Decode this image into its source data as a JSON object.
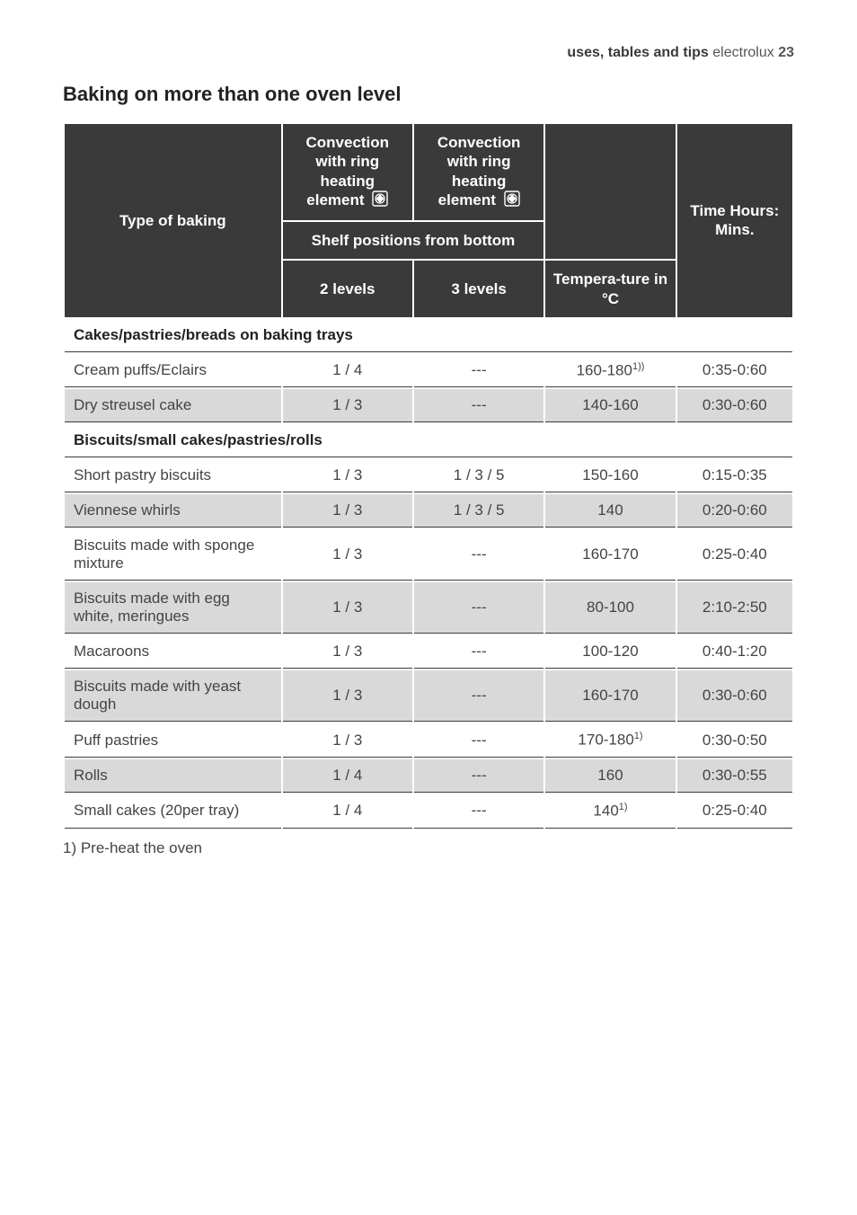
{
  "header": {
    "section": "uses, tables and tips",
    "brand": "electrolux",
    "page": "23"
  },
  "title": "Baking on more than one oven level",
  "table": {
    "colwidths": [
      "30%",
      "18%",
      "18%",
      "18%",
      "16%"
    ],
    "head": {
      "type_of_baking": "Type of baking",
      "conv1": "Convection with ring heating element",
      "conv2": "Convection with ring heating element",
      "time": "Time Hours: Mins.",
      "shelf_span": "Shelf positions from bottom",
      "temp": "Tempera-ture in °C",
      "two_levels": "2 levels",
      "three_levels": "3 levels"
    },
    "sections": [
      {
        "heading": "Cakes/pastries/breads on baking trays",
        "rows": [
          {
            "shade": "odd",
            "name": "Cream puffs/Eclairs",
            "two": "1 / 4",
            "three": "---",
            "temp_html": "160-180<sup>1))</sup>",
            "time": "0:35-0:60"
          },
          {
            "shade": "even",
            "name": "Dry streusel cake",
            "two": "1 / 3",
            "three": "---",
            "temp_html": "140-160",
            "time": "0:30-0:60"
          }
        ]
      },
      {
        "heading": "Biscuits/small cakes/pastries/rolls",
        "rows": [
          {
            "shade": "odd",
            "name": "Short pastry biscuits",
            "two": "1 / 3",
            "three": "1 / 3 / 5",
            "temp_html": "150-160",
            "time": "0:15-0:35"
          },
          {
            "shade": "even",
            "name": "Viennese whirls",
            "two": "1 / 3",
            "three": "1 / 3 / 5",
            "temp_html": "140",
            "time": "0:20-0:60"
          },
          {
            "shade": "odd",
            "name": "Biscuits made with sponge mixture",
            "two": "1 / 3",
            "three": "---",
            "temp_html": "160-170",
            "time": "0:25-0:40"
          },
          {
            "shade": "even",
            "name": "Biscuits made with egg white, meringues",
            "two": "1 / 3",
            "three": "---",
            "temp_html": "80-100",
            "time": "2:10-2:50"
          },
          {
            "shade": "odd",
            "name": "Macaroons",
            "two": "1 / 3",
            "three": "---",
            "temp_html": "100-120",
            "time": "0:40-1:20"
          },
          {
            "shade": "even",
            "name": "Biscuits made with yeast dough",
            "two": "1 / 3",
            "three": "---",
            "temp_html": "160-170",
            "time": "0:30-0:60"
          },
          {
            "shade": "odd",
            "name": "Puff pastries",
            "two": "1 / 3",
            "three": "---",
            "temp_html": "170-180<sup>1)</sup>",
            "time": "0:30-0:50"
          },
          {
            "shade": "even",
            "name": "Rolls",
            "two": "1 / 4",
            "three": "---",
            "temp_html": "160",
            "time": "0:30-0:55"
          },
          {
            "shade": "odd",
            "name": "Small cakes (20per tray)",
            "two": "1 / 4",
            "three": "---",
            "temp_html": "140<sup>1)</sup>",
            "time": "0:25-0:40"
          }
        ]
      }
    ]
  },
  "footnote": "1) Pre-heat the oven",
  "style": {
    "header_bg": "#3a3a3a",
    "header_fg": "#ffffff",
    "row_even_bg": "#d9d9d9",
    "row_odd_bg": "#ffffff",
    "border_color": "#3a3a3a",
    "body_font_size": 17,
    "title_font_size": 22
  }
}
